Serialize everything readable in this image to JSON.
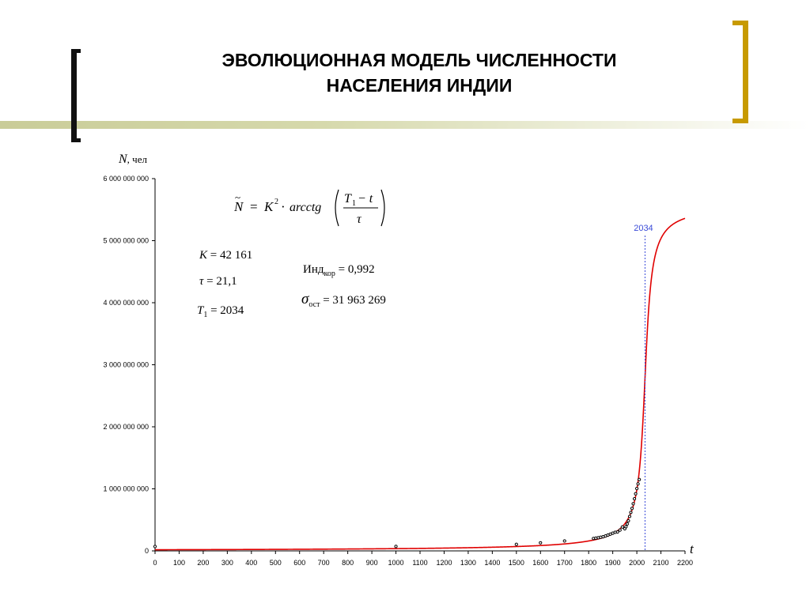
{
  "title": {
    "line1": "ЭВОЛЮЦИОННАЯ МОДЕЛЬ ЧИСЛЕННОСТИ",
    "line2": "НАСЕЛЕНИЯ ИНДИИ"
  },
  "colors": {
    "model_curve": "#e00000",
    "data_points": "#000000",
    "marker_line": "#3a4bd8",
    "bracket_left": "#111111",
    "bracket_right": "#c79a00"
  },
  "params": {
    "K_label": "K",
    "K_value": "= 42 161",
    "tau_label": "τ",
    "tau_value": "= 21,1",
    "T1_label": "T",
    "T1_sub": "1",
    "T1_value": "= 2034",
    "ind_label": "Инд",
    "ind_sub": "кор",
    "ind_value": "= 0,992",
    "sigma_label": "σ",
    "sigma_sub": "ост",
    "sigma_value": "= 31 963 269"
  },
  "formula": {
    "lhs": "N",
    "eq": "=",
    "k": "K",
    "k_exp": "2",
    "dot": "·",
    "func": "arcctg",
    "num_T": "T",
    "num_sub": "1",
    "num_minus": "− t",
    "den": "τ"
  },
  "chart_data": {
    "type": "line",
    "ylabel": "N",
    "ylabel_unit": ", чел",
    "xlabel": "t",
    "xlim": [
      0,
      2200
    ],
    "ylim": [
      0,
      6000000000
    ],
    "x_ticks": [
      0,
      100,
      200,
      300,
      400,
      500,
      600,
      700,
      800,
      900,
      1000,
      1100,
      1200,
      1300,
      1400,
      1500,
      1600,
      1700,
      1800,
      1900,
      2000,
      2100,
      2200
    ],
    "y_ticks": [
      {
        "value": 0,
        "label": "0"
      },
      {
        "value": 1000000000,
        "label": "1 000 000 000"
      },
      {
        "value": 2000000000,
        "label": "2 000 000 000"
      },
      {
        "value": 3000000000,
        "label": "3 000 000 000"
      },
      {
        "value": 4000000000,
        "label": "4 000 000 000"
      },
      {
        "value": 5000000000,
        "label": "5 000 000 000"
      },
      {
        "value": 6000000000,
        "label": "6 000 000 000"
      }
    ],
    "model": {
      "K": 42161,
      "tau": 21.1,
      "T1": 2034
    },
    "marker": {
      "x": 2034,
      "label": "2034"
    },
    "observed_points": [
      [
        0,
        70000000
      ],
      [
        1000,
        72000000
      ],
      [
        1500,
        105000000
      ],
      [
        1600,
        130000000
      ],
      [
        1700,
        160000000
      ],
      [
        1820,
        200000000
      ],
      [
        1830,
        205000000
      ],
      [
        1840,
        212000000
      ],
      [
        1850,
        220000000
      ],
      [
        1860,
        228000000
      ],
      [
        1870,
        240000000
      ],
      [
        1880,
        255000000
      ],
      [
        1890,
        270000000
      ],
      [
        1900,
        285000000
      ],
      [
        1910,
        300000000
      ],
      [
        1920,
        305000000
      ],
      [
        1930,
        335000000
      ],
      [
        1940,
        385000000
      ],
      [
        1950,
        357000000
      ],
      [
        1955,
        390000000
      ],
      [
        1960,
        434000000
      ],
      [
        1965,
        485000000
      ],
      [
        1970,
        555000000
      ],
      [
        1975,
        620000000
      ],
      [
        1980,
        685000000
      ],
      [
        1985,
        760000000
      ],
      [
        1990,
        840000000
      ],
      [
        1995,
        920000000
      ],
      [
        2000,
        1005000000
      ],
      [
        2005,
        1080000000
      ],
      [
        2010,
        1150000000
      ]
    ]
  }
}
